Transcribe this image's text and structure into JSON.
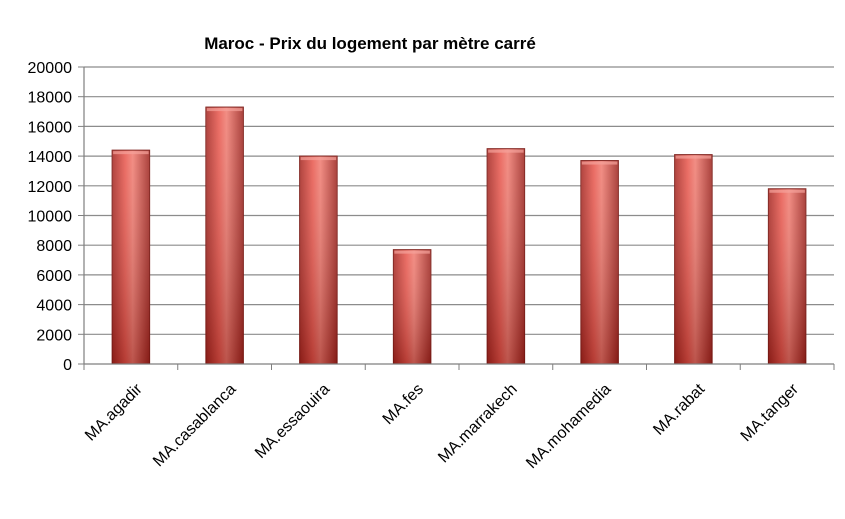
{
  "chart_data": {
    "type": "bar",
    "title": "Maroc - Prix du logement par mètre carré",
    "xlabel": "",
    "ylabel": "",
    "categories": [
      "MA.agadir",
      "MA.casablanca",
      "MA.essaouira",
      "MA.fes",
      "MA.marrakech",
      "MA.mohamedia",
      "MA.rabat",
      "MA.tanger"
    ],
    "values": [
      14400,
      17300,
      14000,
      7700,
      14500,
      13700,
      14100,
      11800
    ],
    "ylim": [
      0,
      20000
    ],
    "yticks": [
      "0",
      "2000",
      "4000",
      "6000",
      "8000",
      "10000",
      "12000",
      "14000",
      "16000",
      "18000",
      "20000"
    ],
    "grid": true,
    "legend": "none",
    "bar_color": "#d9413a",
    "bar_highlight": "#f07a6f",
    "bar_shadow": "#8e1d18",
    "grid_color": "#8c8c8c"
  }
}
